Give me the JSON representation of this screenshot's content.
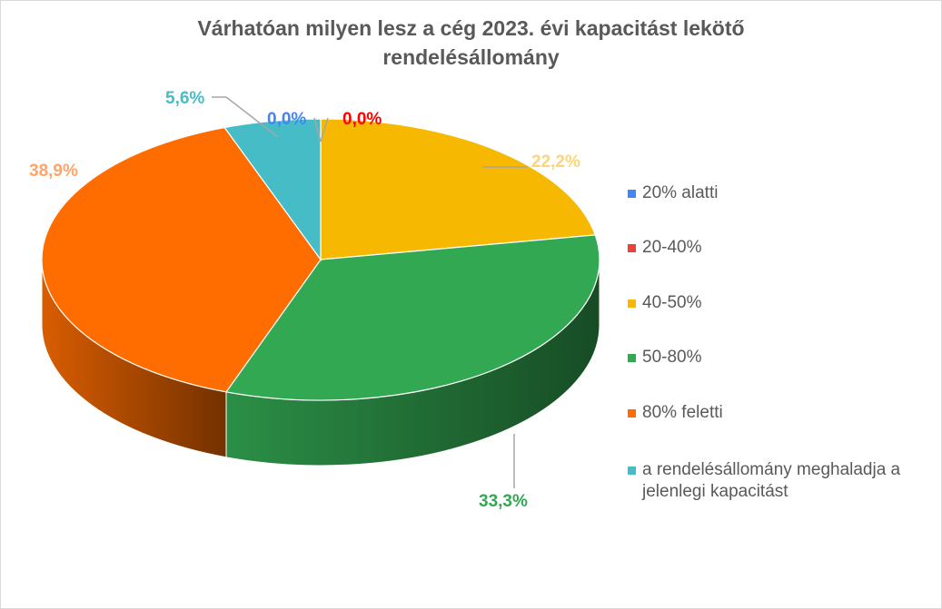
{
  "chart_data": {
    "type": "pie",
    "style": "3d",
    "title": [
      "Várhatóan milyen lesz a cég 2023. évi kapacitást lekötő",
      "rendelésállomány"
    ],
    "categories": [
      "20% alatti",
      "20-40%",
      "40-50%",
      "50-80%",
      "80% feletti",
      "a rendelésállomány meghaladja a jelenlegi kapacitást"
    ],
    "values": [
      0.0,
      0.0,
      22.2,
      33.3,
      38.9,
      5.6
    ],
    "data_labels": [
      "0,0%",
      "0,0%",
      "22,2%",
      "33,3%",
      "38,9%",
      "5,6%"
    ],
    "colors": [
      "#4285f4",
      "#ea4335",
      "#f6b800",
      "#33a852",
      "#ff6d01",
      "#46bdc6"
    ],
    "label_colors": [
      "#4285f4",
      "#ff0000",
      "#fdd577",
      "#33a852",
      "#ffa466",
      "#46bdc6"
    ],
    "legend_position": "right"
  }
}
